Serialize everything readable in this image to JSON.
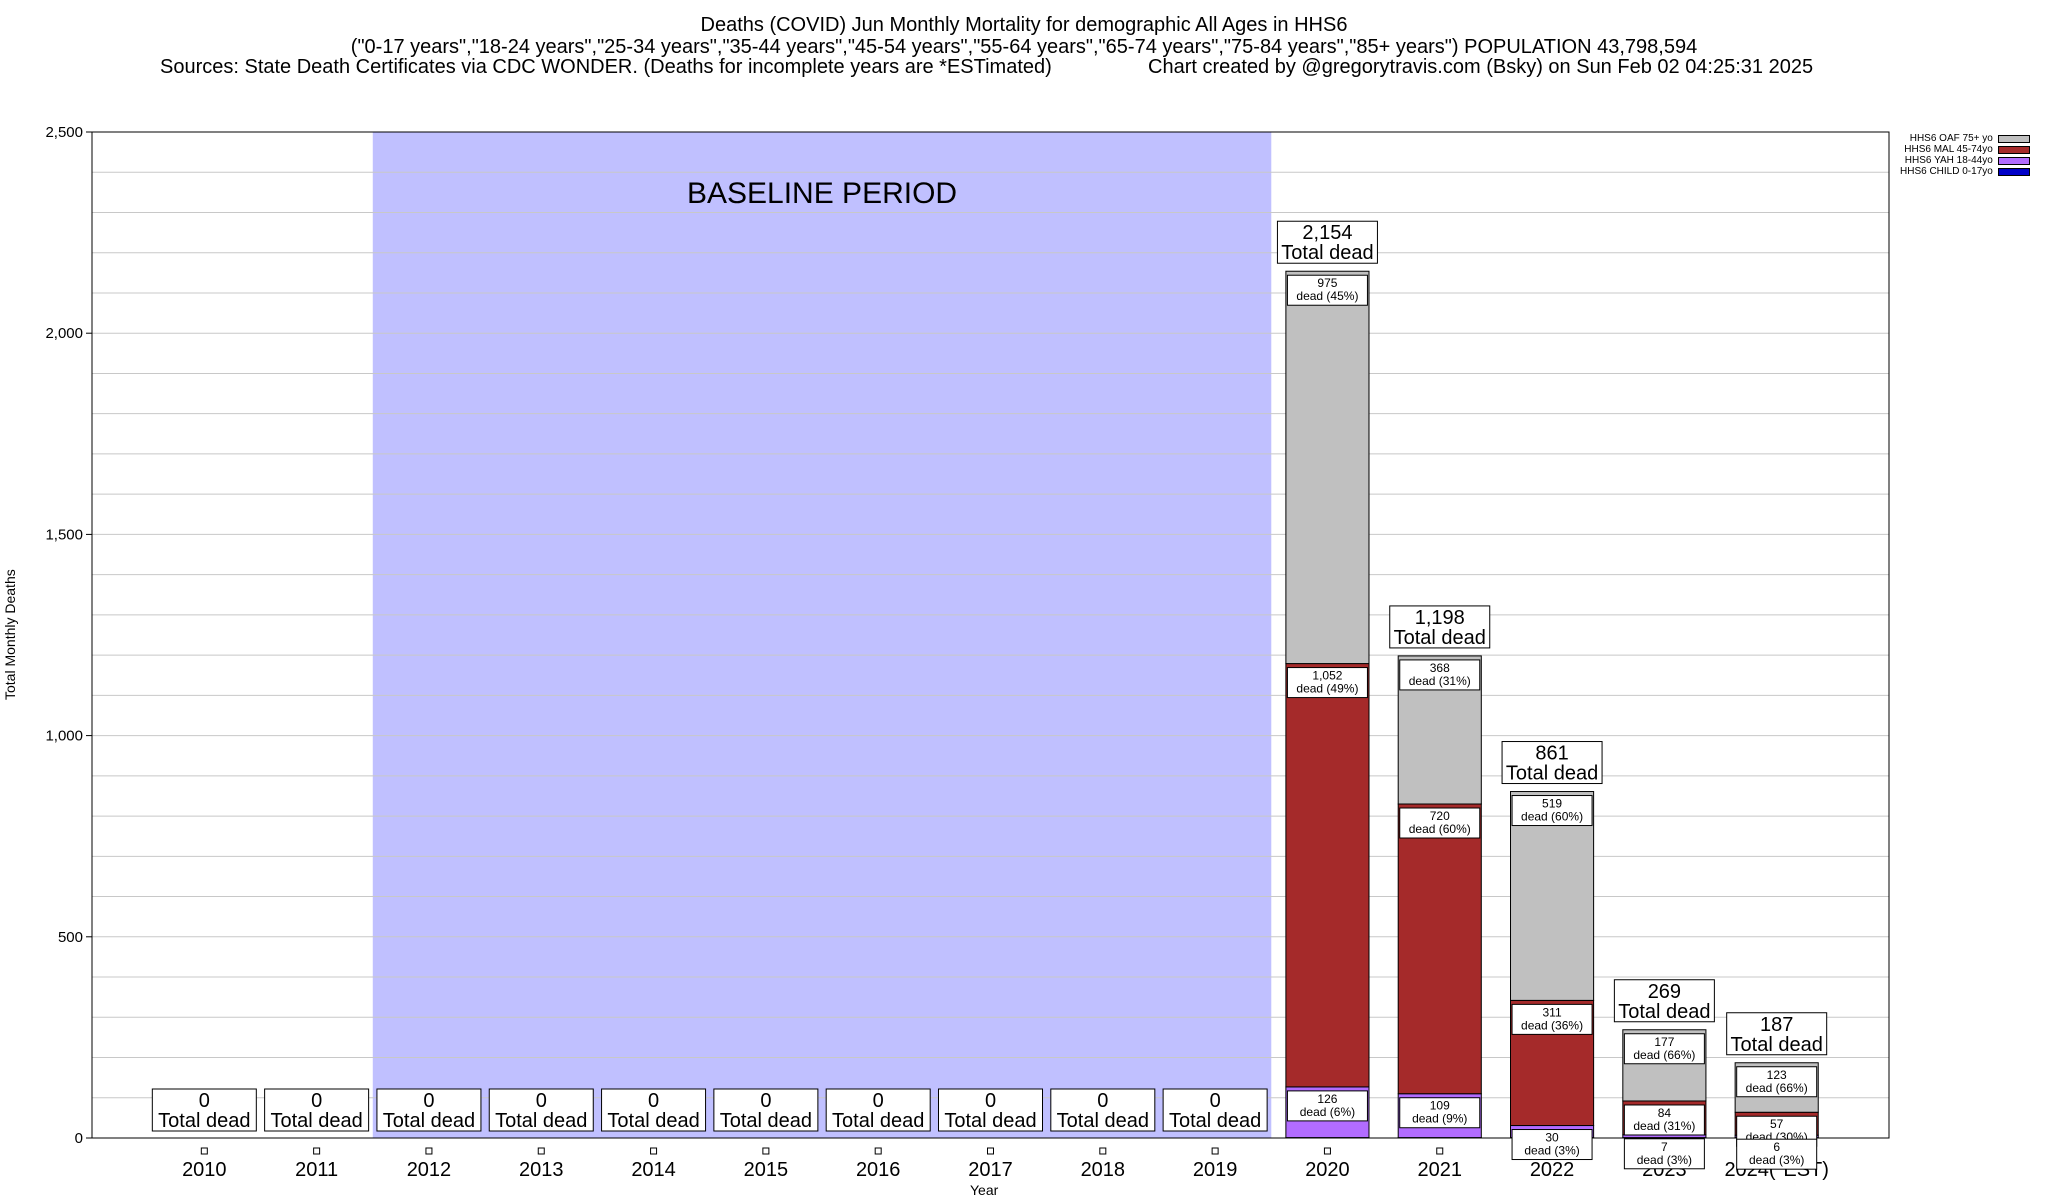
{
  "header": {
    "title": "Deaths (COVID) Jun Monthly Mortality for demographic All Ages in HHS6",
    "subtitle": "(\"0-17 years\",\"18-24 years\",\"25-34 years\",\"35-44 years\",\"45-54 years\",\"55-64 years\",\"65-74 years\",\"75-84 years\",\"85+ years\") POPULATION 43,798,594",
    "sources": "Sources: State Death Certificates via CDC WONDER. (Deaths for incomplete years are *ESTimated)",
    "credit": "Chart created by @gregorytravis.com (Bsky) on Sun Feb 02 04:25:31 2025"
  },
  "chart_data": {
    "type": "bar",
    "stacked": true,
    "xlabel": "Year",
    "ylabel": "Total Monthly Deaths",
    "ylim": [
      0,
      2500
    ],
    "yticks": [
      0,
      500,
      1000,
      1500,
      2000,
      2500
    ],
    "ytick_labels": [
      "0",
      "500",
      "1,000",
      "1,500",
      "2,000",
      "2,500"
    ],
    "grid": true,
    "legend_position": "top-right",
    "baseline_label": "BASELINE PERIOD",
    "baseline_range": [
      "2012",
      "2019"
    ],
    "baseline_color": "#c0c0ff",
    "categories": [
      "2010",
      "2011",
      "2012",
      "2013",
      "2014",
      "2015",
      "2016",
      "2017",
      "2018",
      "2019",
      "2020",
      "2021",
      "2022",
      "2023",
      "2024(*EST)"
    ],
    "series": [
      {
        "name": "HHS6 CHILD 0-17yo",
        "color": "#0000c8",
        "values": [
          0,
          0,
          0,
          0,
          0,
          0,
          0,
          0,
          0,
          0,
          1,
          1,
          1,
          1,
          1
        ]
      },
      {
        "name": "HHS6 YAH 18-44yo",
        "color": "#b26cff",
        "values": [
          0,
          0,
          0,
          0,
          0,
          0,
          0,
          0,
          0,
          0,
          126,
          109,
          30,
          7,
          6
        ]
      },
      {
        "name": "HHS6 MAL 45-74yo",
        "color": "#a52a2a",
        "values": [
          0,
          0,
          0,
          0,
          0,
          0,
          0,
          0,
          0,
          0,
          1052,
          720,
          311,
          84,
          57
        ]
      },
      {
        "name": "HHS6 OAF 75+ yo",
        "color": "#c0c0c0",
        "values": [
          0,
          0,
          0,
          0,
          0,
          0,
          0,
          0,
          0,
          0,
          975,
          368,
          519,
          177,
          123
        ]
      }
    ],
    "totals": [
      0,
      0,
      0,
      0,
      0,
      0,
      0,
      0,
      0,
      0,
      2154,
      1198,
      861,
      269,
      187
    ],
    "total_labels": [
      "0",
      "0",
      "0",
      "0",
      "0",
      "0",
      "0",
      "0",
      "0",
      "0",
      "2,154",
      "1,198",
      "861",
      "269",
      "187"
    ],
    "total_caption": "Total dead",
    "segment_labels": [
      {
        "year": "2020",
        "series": "HHS6 OAF 75+ yo",
        "value": "975",
        "text": "dead (45%)"
      },
      {
        "year": "2020",
        "series": "HHS6 MAL 45-74yo",
        "value": "1,052",
        "text": "dead (49%)"
      },
      {
        "year": "2020",
        "series": "HHS6 YAH 18-44yo",
        "value": "126",
        "text": "dead (6%)"
      },
      {
        "year": "2021",
        "series": "HHS6 OAF 75+ yo",
        "value": "368",
        "text": "dead (31%)"
      },
      {
        "year": "2021",
        "series": "HHS6 MAL 45-74yo",
        "value": "720",
        "text": "dead (60%)"
      },
      {
        "year": "2021",
        "series": "HHS6 YAH 18-44yo",
        "value": "109",
        "text": "dead (9%)"
      },
      {
        "year": "2022",
        "series": "HHS6 OAF 75+ yo",
        "value": "519",
        "text": "dead (60%)"
      },
      {
        "year": "2022",
        "series": "HHS6 MAL 45-74yo",
        "value": "311",
        "text": "dead (36%)"
      },
      {
        "year": "2022",
        "series": "HHS6 YAH 18-44yo",
        "value": "30",
        "text": "dead (3%)"
      },
      {
        "year": "2023",
        "series": "HHS6 OAF 75+ yo",
        "value": "177",
        "text": "dead (66%)"
      },
      {
        "year": "2023",
        "series": "HHS6 MAL 45-74yo",
        "value": "84",
        "text": "dead (31%)"
      },
      {
        "year": "2023",
        "series": "HHS6 YAH 18-44yo",
        "value": "7",
        "text": "dead (3%)"
      },
      {
        "year": "2024(*EST)",
        "series": "HHS6 OAF 75+ yo",
        "value": "123",
        "text": "dead (66%)"
      },
      {
        "year": "2024(*EST)",
        "series": "HHS6 MAL 45-74yo",
        "value": "57",
        "text": "dead (30%)"
      },
      {
        "year": "2024(*EST)",
        "series": "HHS6 YAH 18-44yo",
        "value": "6",
        "text": "dead (3%)"
      }
    ]
  }
}
